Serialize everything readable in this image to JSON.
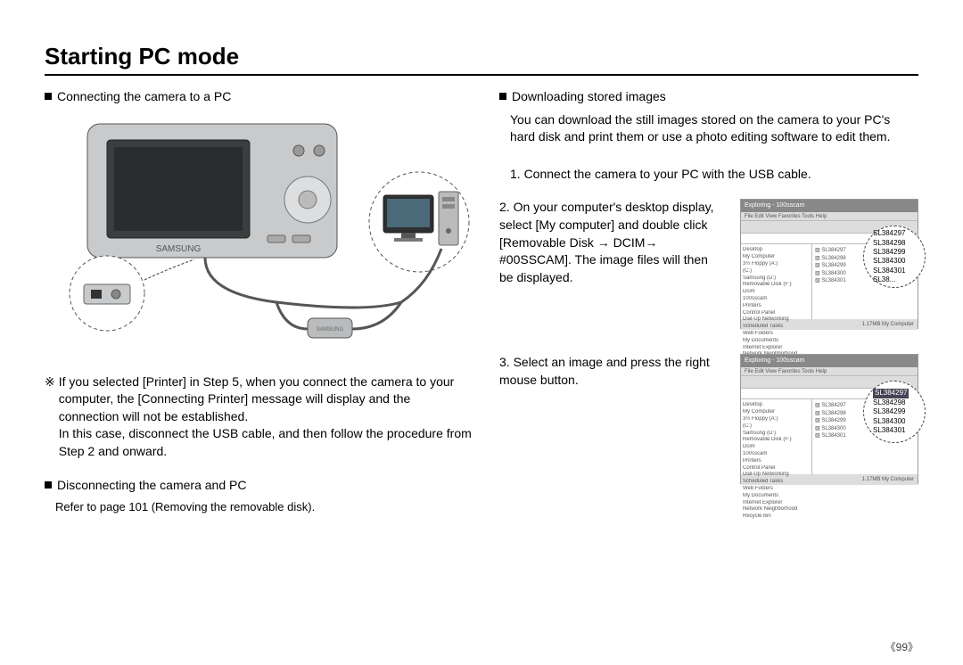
{
  "title": "Starting PC mode",
  "left": {
    "h1": "Connecting the camera to a PC",
    "camera_brand": "SAMSUNG",
    "note_symbol": "※",
    "note_p1": "If you selected [Printer] in Step 5, when you connect the camera to your computer, the [Connecting Printer] message will display and the connection will not be established.",
    "note_p2": "In this case, disconnect the USB cable, and then follow the procedure from Step 2 and onward.",
    "h2": "Disconnecting the camera and PC",
    "h2_sub": "Refer to page 101 (Removing the removable disk)."
  },
  "right": {
    "h1": "Downloading stored images",
    "intro": "You can download the still images stored on the camera to your PC's hard disk and print them or use a photo editing software to edit them.",
    "step1": "1. Connect the camera to your PC with the USB cable.",
    "step2": "2. On your computer's desktop display, select [My computer] and double click [Removable Disk → DCIM→ #00SSCAM]. The image files will then be displayed.",
    "step3": "3. Select an image and press the right mouse button."
  },
  "file_window": {
    "title": "Exploring - 100sscam",
    "menu": "File  Edit  View  Favorites  Tools  Help",
    "tree": [
      "Desktop",
      " My Computer",
      "  3½ Floppy (A:)",
      "  (C:)",
      "  Samsung (D:)",
      "  Removable Disk (F:)",
      "   Dcim",
      "    100sscam",
      "  Printers",
      "  Control Panel",
      "  Dial-Up Networking",
      "  Scheduled Tasks",
      "  Web Folders",
      " My Documents",
      " Internet Explorer",
      " Network Neighborhood",
      " Recycle Bin"
    ],
    "list_items": [
      "SL384297",
      "SL384298",
      "SL384299",
      "SL384300",
      "SL384301"
    ],
    "status": "1.17MB    My Computer"
  },
  "zoom1": {
    "items": [
      "SL384297",
      "SL384298",
      "SL384299",
      "SL384300",
      "SL384301",
      "SL38..."
    ],
    "selected_index": -1
  },
  "zoom2": {
    "items": [
      "SL384297",
      "SL384298",
      "SL384299",
      "SL384300",
      "SL384301"
    ],
    "selected_index": 0
  },
  "page_number": "《99》",
  "colors": {
    "camera_body": "#c8cacc",
    "camera_screen": "#3a3e3f",
    "cable": "#555555",
    "monitor": "#2d2f30",
    "pc_body": "#b9bbbc"
  }
}
